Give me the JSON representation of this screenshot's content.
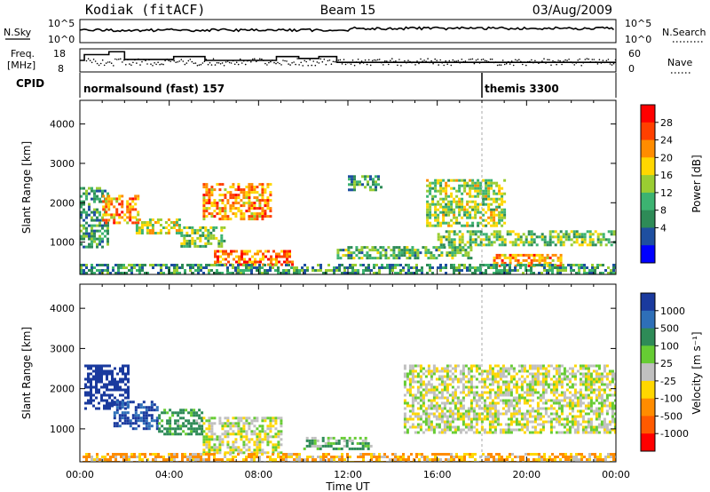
{
  "header": {
    "station": "Kodiak (fitACF)",
    "beam": "Beam 15",
    "date": "03/Aug/2009"
  },
  "top_panels": {
    "nsky_label": "N.Sky",
    "nsearch_label": "N.Search",
    "nsky_ticks": [
      "10^5",
      "10^0"
    ],
    "freq_label": [
      "Freq.",
      "[MHz]"
    ],
    "freq_ticks": [
      "18",
      "8"
    ],
    "nave_label": "Nave",
    "nave_ticks": [
      "60",
      "0"
    ],
    "cpid_label": "CPID",
    "cpid_entries": [
      {
        "time_h": 0,
        "text": "normalsound (fast) 157"
      },
      {
        "time_h": 18,
        "text": "themis 3300"
      }
    ]
  },
  "power_panel": {
    "ylabel": "Slant Range [km]",
    "yticks": [
      "1000",
      "2000",
      "3000",
      "4000"
    ],
    "colorbar_title": "Power [dB]",
    "colorbar_labels": [
      "28",
      "24",
      "20",
      "16",
      "12",
      "8",
      "4"
    ],
    "colorbar_colors": [
      "#ff0000",
      "#ff4000",
      "#ff8c00",
      "#ffd700",
      "#9acd32",
      "#3cb371",
      "#2e8b57",
      "#1e4fa0",
      "#0000ff"
    ]
  },
  "velocity_panel": {
    "ylabel": "Slant Range [km]",
    "yticks": [
      "1000",
      "2000",
      "3000",
      "4000"
    ],
    "colorbar_title": "Velocity [m s⁻¹]",
    "colorbar_labels": [
      "1000",
      "500",
      "100",
      "25",
      "-25",
      "-100",
      "-500",
      "-1000"
    ],
    "colorbar_colors": [
      "#1a3a9e",
      "#2e6fb8",
      "#2e8b57",
      "#66cc33",
      "#c0c0c0",
      "#ffd700",
      "#ff8c00",
      "#ff5a00",
      "#ff0000"
    ]
  },
  "time_axis": {
    "labels": [
      "00:00",
      "04:00",
      "08:00",
      "12:00",
      "16:00",
      "20:00",
      "00:00"
    ],
    "title": "Time UT"
  },
  "chart_data": [
    {
      "type": "heatmap",
      "title": "Power [dB]",
      "xlabel": "Time UT",
      "ylabel": "Slant Range [km]",
      "xlim": [
        0,
        24
      ],
      "ylim": [
        180,
        4600
      ],
      "regions": [
        {
          "t": [
            0.0,
            1.2
          ],
          "r": [
            900,
            2400
          ],
          "value": 10
        },
        {
          "t": [
            1.0,
            2.6
          ],
          "r": [
            1500,
            2200
          ],
          "value": 24
        },
        {
          "t": [
            2.5,
            4.5
          ],
          "r": [
            1200,
            1600
          ],
          "value": 18
        },
        {
          "t": [
            4.5,
            6.5
          ],
          "r": [
            900,
            1400
          ],
          "value": 14
        },
        {
          "t": [
            5.5,
            8.5
          ],
          "r": [
            1600,
            2500
          ],
          "value": 24
        },
        {
          "t": [
            6.0,
            9.5
          ],
          "r": [
            400,
            800
          ],
          "value": 26
        },
        {
          "t": [
            11.5,
            17.5
          ],
          "r": [
            600,
            900
          ],
          "value": 12
        },
        {
          "t": [
            12.0,
            13.5
          ],
          "r": [
            2300,
            2700
          ],
          "value": 10
        },
        {
          "t": [
            15.5,
            19.0
          ],
          "r": [
            1400,
            2600
          ],
          "value": 16
        },
        {
          "t": [
            16.0,
            24.0
          ],
          "r": [
            900,
            1300
          ],
          "value": 14
        },
        {
          "t": [
            18.5,
            21.5
          ],
          "r": [
            400,
            700
          ],
          "value": 24
        },
        {
          "t": [
            0.0,
            24.0
          ],
          "r": [
            200,
            450
          ],
          "value": 10
        }
      ]
    },
    {
      "type": "heatmap",
      "title": "Velocity [m s⁻¹]",
      "xlabel": "Time UT",
      "ylabel": "Slant Range [km]",
      "xlim": [
        0,
        24
      ],
      "ylim": [
        180,
        4600
      ],
      "regions": [
        {
          "t": [
            0.2,
            2.2
          ],
          "r": [
            1500,
            2600
          ],
          "value": 800
        },
        {
          "t": [
            1.5,
            3.5
          ],
          "r": [
            1000,
            1700
          ],
          "value": 700
        },
        {
          "t": [
            3.5,
            5.5
          ],
          "r": [
            900,
            1500
          ],
          "value": 80
        },
        {
          "t": [
            5.5,
            9.0
          ],
          "r": [
            400,
            1300
          ],
          "value": 0
        },
        {
          "t": [
            10.0,
            13.0
          ],
          "r": [
            500,
            800
          ],
          "value": 60
        },
        {
          "t": [
            14.5,
            24.0
          ],
          "r": [
            900,
            2600
          ],
          "value": 0
        },
        {
          "t": [
            0.0,
            24.0
          ],
          "r": [
            200,
            400
          ],
          "value": -60
        }
      ]
    }
  ]
}
